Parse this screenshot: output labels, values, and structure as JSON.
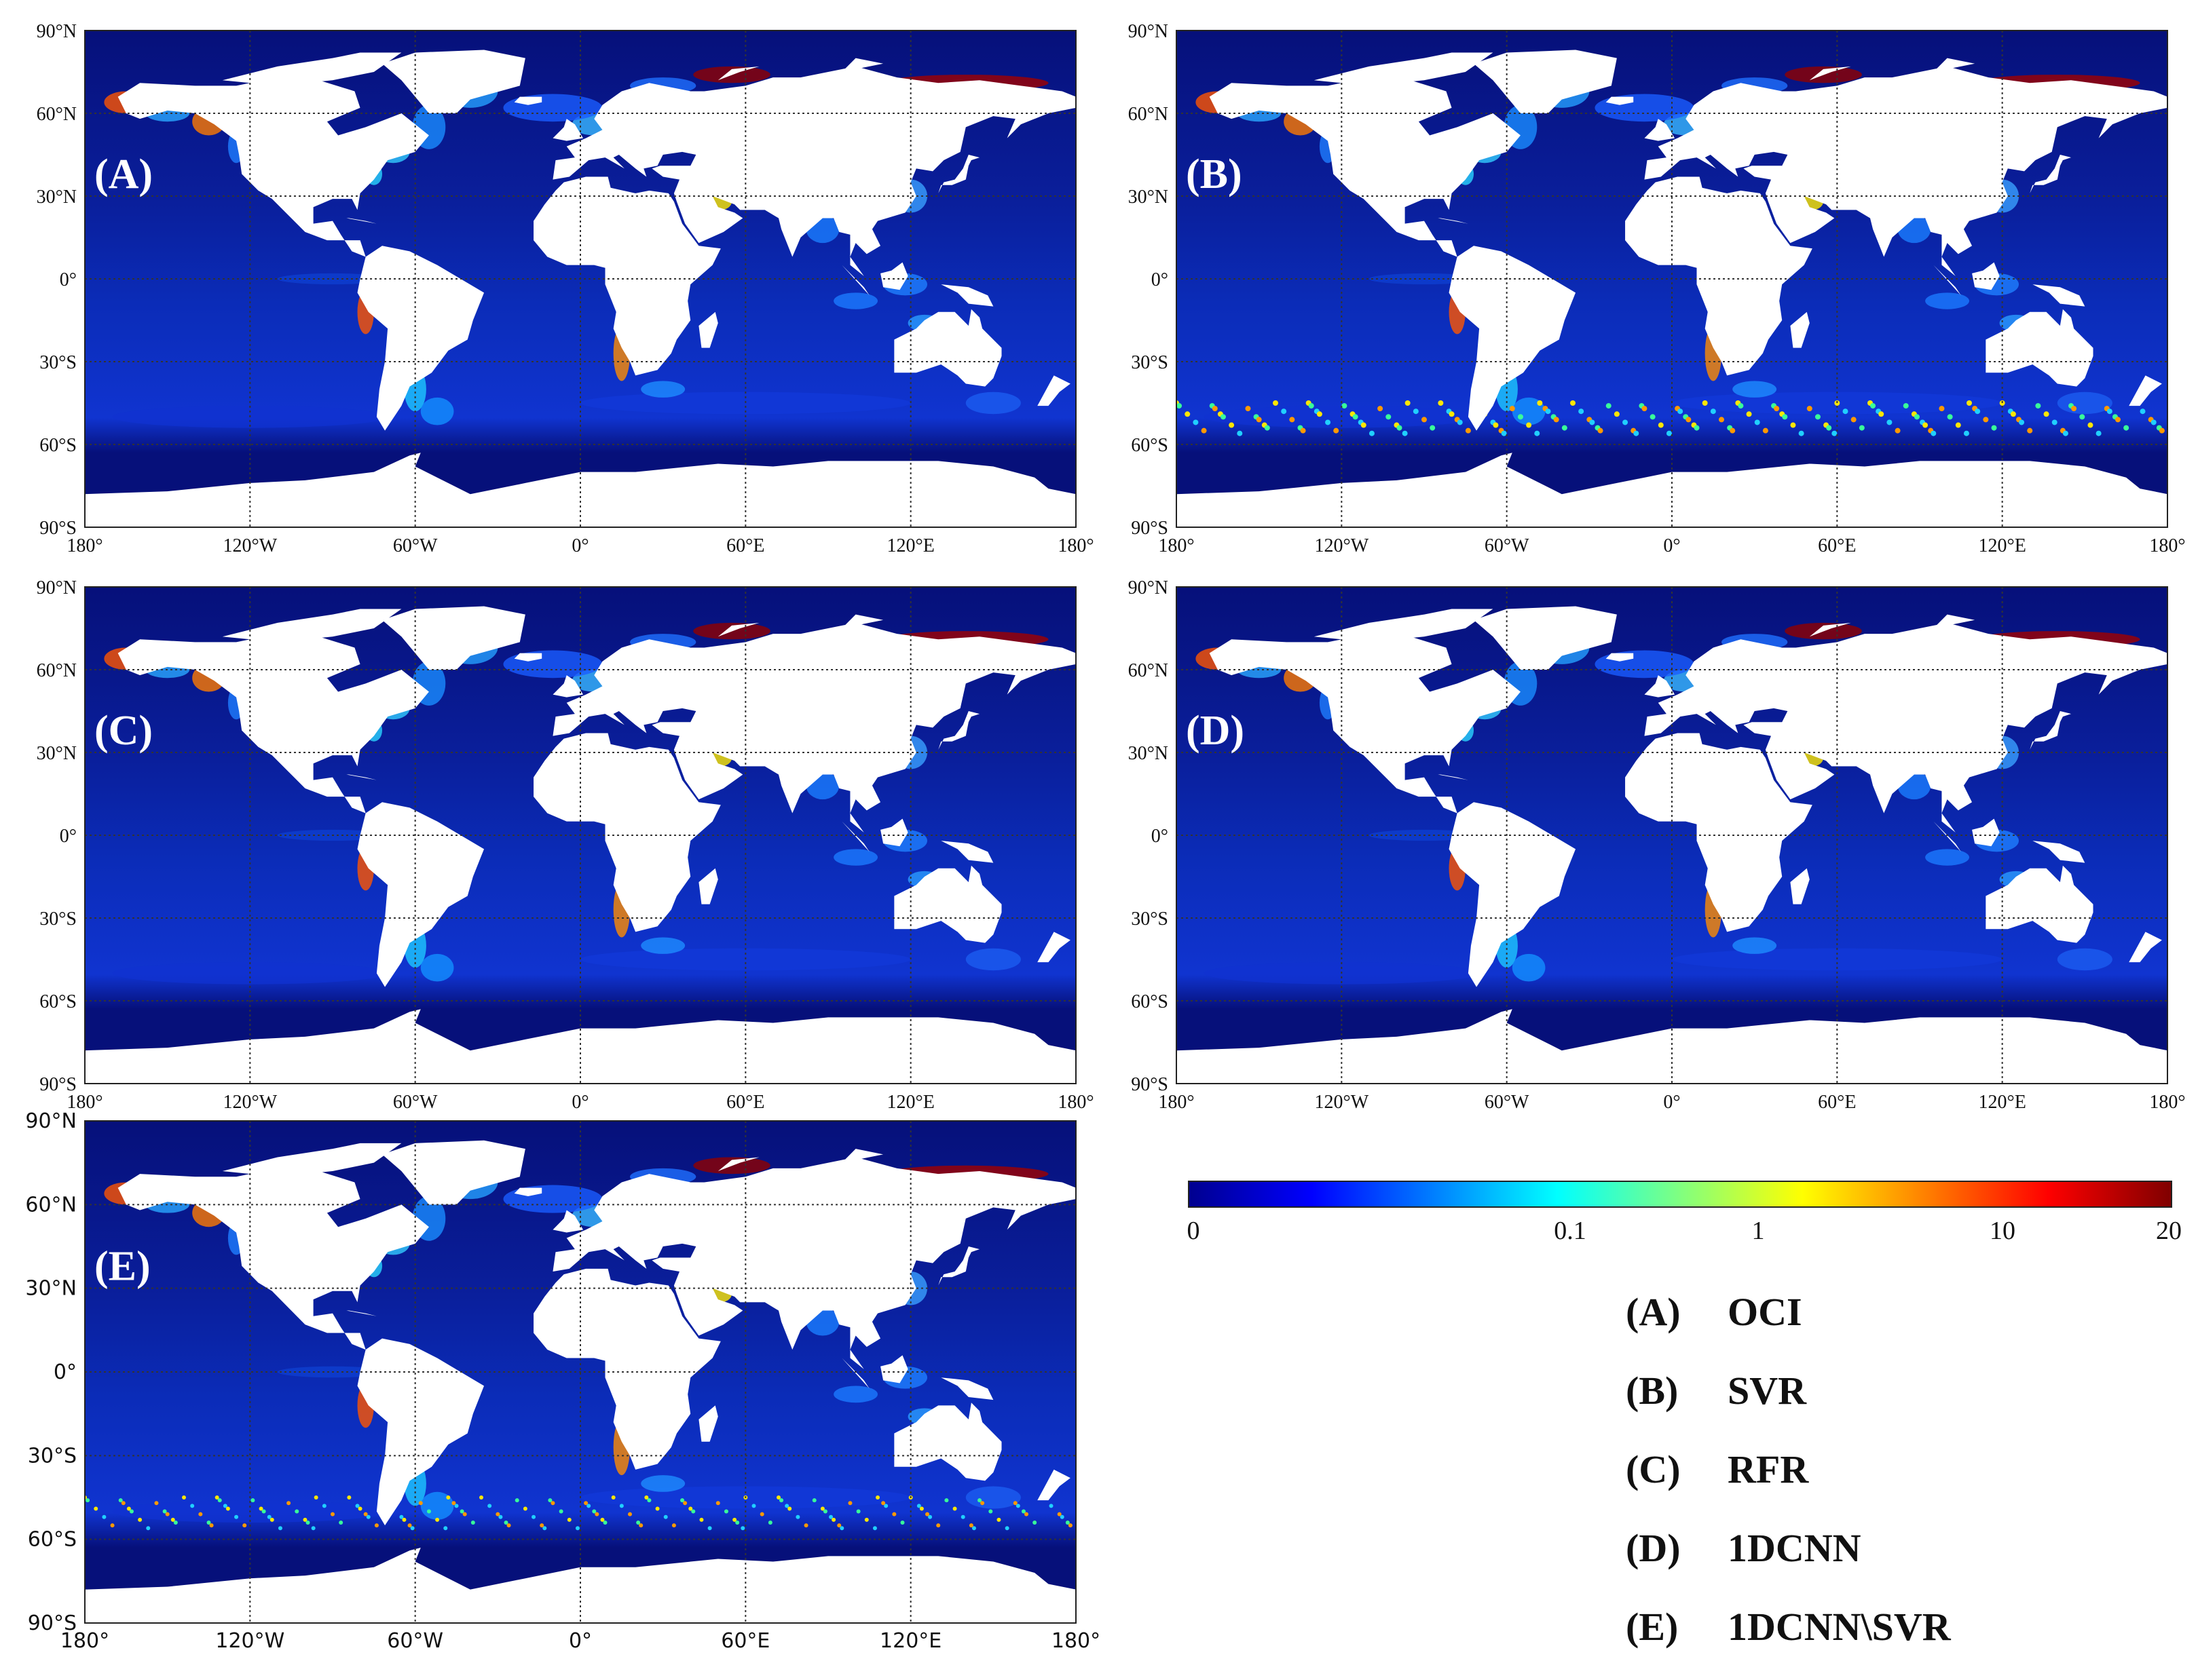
{
  "panels": [
    {
      "label": "(A)",
      "lat_labels": [
        "90°N",
        "60°N",
        "30°N",
        "0°",
        "30°S",
        "60°S",
        "90°S"
      ],
      "lon_labels": [
        "180°",
        "120°W",
        "60°W",
        "0°",
        "60°E",
        "120°E",
        "180°"
      ]
    },
    {
      "label": "(B)",
      "lat_labels": [
        "90°N",
        "60°N",
        "30°N",
        "0°",
        "30°S",
        "60°S",
        "90°S"
      ],
      "lon_labels": [
        "180°",
        "120°W",
        "60°W",
        "0°",
        "60°E",
        "120°E",
        "180°"
      ]
    },
    {
      "label": "(C)",
      "lat_labels": [
        "90°N",
        "60°N",
        "30°N",
        "0°",
        "30°S",
        "60°S",
        "90°S"
      ],
      "lon_labels": [
        "180°",
        "120°W",
        "60°W",
        "0°",
        "60°E",
        "120°E",
        "180°"
      ]
    },
    {
      "label": "(D)",
      "lat_labels": [
        "90°N",
        "60°N",
        "30°N",
        "0°",
        "30°S",
        "60°S",
        "90°S"
      ],
      "lon_labels": [
        "180°",
        "120°W",
        "60°W",
        "0°",
        "60°E",
        "120°E",
        "180°"
      ]
    },
    {
      "label": "(E)",
      "lat_labels": [
        "90°N",
        "60°N",
        "30°N",
        "0°",
        "30°S",
        "60°S",
        "90°S"
      ],
      "lon_labels": [
        "180°",
        "120°W",
        "60°W",
        "0°",
        "60°E",
        "120°E",
        "180°"
      ]
    }
  ],
  "colorbar": {
    "ticks": [
      "0",
      "0.1",
      "1",
      "10",
      "20"
    ],
    "colors": [
      "#00008f",
      "#0000ff",
      "#0080ff",
      "#00ffff",
      "#80ff80",
      "#ffff00",
      "#ff8000",
      "#ff0000",
      "#800000"
    ]
  },
  "legend": [
    {
      "code": "(A)",
      "name": "OCI"
    },
    {
      "code": "(B)",
      "name": "SVR"
    },
    {
      "code": "(C)",
      "name": "RFR"
    },
    {
      "code": "(D)",
      "name": "1DCNN"
    },
    {
      "code": "(E)",
      "name": "1DCNN\\SVR"
    }
  ],
  "colors": {
    "ocean": "#0a1f9c",
    "ocean_deep": "#06107a",
    "land": "#ffffff",
    "grid": "#333333"
  }
}
